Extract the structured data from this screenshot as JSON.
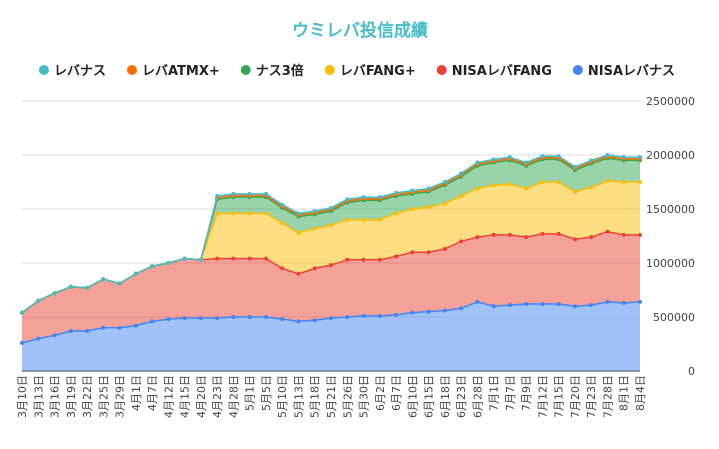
{
  "chart_data": {
    "type": "stacked-area",
    "title": "ウミレバ投信成績",
    "categories": [
      "3月10日",
      "3月13日",
      "3月16日",
      "3月19日",
      "3月22日",
      "3月25日",
      "3月29日",
      "4月1日",
      "4月7日",
      "4月12日",
      "4月15日",
      "4月20日",
      "4月23日",
      "4月28日",
      "5月1日",
      "5月5日",
      "5月10日",
      "5月13日",
      "5月18日",
      "5月21日",
      "5月26日",
      "5月30日",
      "6月2日",
      "6月7日",
      "6月10日",
      "6月15日",
      "6月18日",
      "6月23日",
      "6月28日",
      "7月1日",
      "7月7日",
      "7月9日",
      "7月12日",
      "7月15日",
      "7月20日",
      "7月23日",
      "7月28日",
      "8月1日",
      "8月4日"
    ],
    "series": [
      {
        "name": "レバナス",
        "color": "#46bdc6",
        "values": [
          0,
          0,
          0,
          0,
          0,
          0,
          0,
          0,
          0,
          0,
          0,
          0,
          15000,
          15000,
          15000,
          15000,
          15000,
          15000,
          15000,
          15000,
          15000,
          15000,
          15000,
          15000,
          15000,
          15000,
          15000,
          15000,
          15000,
          15000,
          15000,
          15000,
          15000,
          15000,
          15000,
          15000,
          15000,
          15000,
          15000
        ]
      },
      {
        "name": "レバATMX+",
        "color": "#ff6d01",
        "values": [
          0,
          0,
          0,
          0,
          0,
          0,
          0,
          0,
          0,
          0,
          0,
          0,
          15000,
          15000,
          15000,
          15000,
          15000,
          15000,
          15000,
          15000,
          15000,
          15000,
          15000,
          15000,
          15000,
          15000,
          15000,
          15000,
          15000,
          15000,
          15000,
          15000,
          15000,
          15000,
          15000,
          15000,
          15000,
          15000,
          15000
        ]
      },
      {
        "name": "ナス3倍",
        "color": "#34a853",
        "values": [
          0,
          0,
          0,
          0,
          0,
          0,
          0,
          0,
          0,
          0,
          0,
          0,
          130000,
          150000,
          150000,
          150000,
          140000,
          150000,
          130000,
          130000,
          160000,
          180000,
          180000,
          160000,
          140000,
          140000,
          170000,
          180000,
          210000,
          210000,
          220000,
          210000,
          210000,
          210000,
          200000,
          220000,
          210000,
          200000,
          200000
        ]
      },
      {
        "name": "レバFANG+",
        "color": "#fbbc04",
        "values": [
          0,
          0,
          0,
          0,
          0,
          0,
          0,
          0,
          0,
          0,
          0,
          0,
          420000,
          420000,
          420000,
          420000,
          420000,
          380000,
          370000,
          370000,
          370000,
          370000,
          370000,
          400000,
          400000,
          420000,
          420000,
          420000,
          450000,
          460000,
          470000,
          450000,
          480000,
          480000,
          440000,
          460000,
          470000,
          490000,
          490000
        ]
      },
      {
        "name": "NISAレバFANG",
        "color": "#ea4335",
        "values": [
          280000,
          350000,
          390000,
          410000,
          400000,
          450000,
          410000,
          480000,
          510000,
          520000,
          550000,
          540000,
          550000,
          540000,
          540000,
          540000,
          470000,
          440000,
          480000,
          490000,
          530000,
          520000,
          520000,
          540000,
          560000,
          550000,
          570000,
          620000,
          600000,
          660000,
          650000,
          620000,
          650000,
          650000,
          620000,
          630000,
          650000,
          630000,
          620000
        ]
      },
      {
        "name": "NISAレバナス",
        "color": "#4285f4",
        "values": [
          260000,
          300000,
          330000,
          370000,
          370000,
          400000,
          400000,
          420000,
          460000,
          480000,
          490000,
          490000,
          490000,
          500000,
          500000,
          500000,
          480000,
          460000,
          470000,
          490000,
          500000,
          510000,
          510000,
          520000,
          540000,
          550000,
          560000,
          580000,
          640000,
          600000,
          610000,
          620000,
          620000,
          620000,
          600000,
          610000,
          640000,
          630000,
          640000
        ]
      }
    ],
    "ylim": [
      0,
      2500000
    ],
    "yticks": [
      0,
      500000,
      1000000,
      1500000,
      2000000,
      2500000
    ],
    "grid": true,
    "legend": "top"
  }
}
